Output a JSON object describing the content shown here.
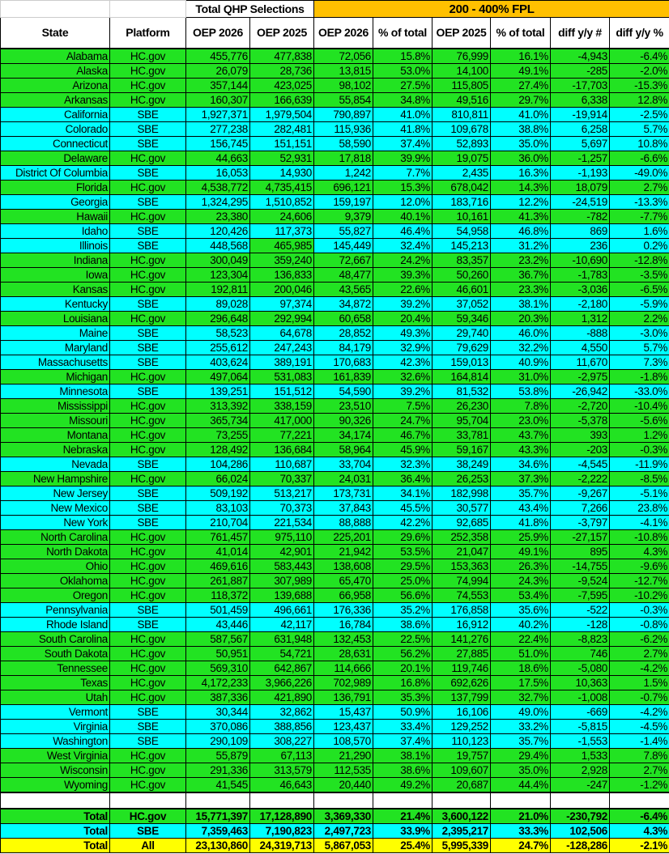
{
  "header": {
    "group_total": "Total QHP Selections",
    "group_fpl": "200 - 400% FPL",
    "columns": [
      "State",
      "Platform",
      "OEP 2026",
      "OEP 2025",
      "OEP 2026",
      "% of total",
      "OEP 2025",
      "% of total",
      "diff y/y #",
      "diff y/y %"
    ]
  },
  "colors": {
    "hc_gov": "#22e322",
    "sbe": "#00ffff",
    "all_total": "#ffff00",
    "fpl_header": "#ffc000"
  },
  "rows": [
    [
      "Alabama",
      "HC.gov",
      "455,776",
      "477,838",
      "72,056",
      "15.8%",
      "76,999",
      "16.1%",
      "-4,943",
      "-6.4%"
    ],
    [
      "Alaska",
      "HC.gov",
      "26,079",
      "28,736",
      "13,815",
      "53.0%",
      "14,100",
      "49.1%",
      "-285",
      "-2.0%"
    ],
    [
      "Arizona",
      "HC.gov",
      "357,144",
      "423,025",
      "98,102",
      "27.5%",
      "115,805",
      "27.4%",
      "-17,703",
      "-15.3%"
    ],
    [
      "Arkansas",
      "HC.gov",
      "160,307",
      "166,639",
      "55,854",
      "34.8%",
      "49,516",
      "29.7%",
      "6,338",
      "12.8%"
    ],
    [
      "California",
      "SBE",
      "1,927,371",
      "1,979,504",
      "790,897",
      "41.0%",
      "810,811",
      "41.0%",
      "-19,914",
      "-2.5%"
    ],
    [
      "Colorado",
      "SBE",
      "277,238",
      "282,481",
      "115,936",
      "41.8%",
      "109,678",
      "38.8%",
      "6,258",
      "5.7%"
    ],
    [
      "Connecticut",
      "SBE",
      "156,745",
      "151,151",
      "58,590",
      "37.4%",
      "52,893",
      "35.0%",
      "5,697",
      "10.8%"
    ],
    [
      "Delaware",
      "HC.gov",
      "44,663",
      "52,931",
      "17,818",
      "39.9%",
      "19,075",
      "36.0%",
      "-1,257",
      "-6.6%"
    ],
    [
      "District Of Columbia",
      "SBE",
      "16,053",
      "14,930",
      "1,242",
      "7.7%",
      "2,435",
      "16.3%",
      "-1,193",
      "-49.0%"
    ],
    [
      "Florida",
      "HC.gov",
      "4,538,772",
      "4,735,415",
      "696,121",
      "15.3%",
      "678,042",
      "14.3%",
      "18,079",
      "2.7%"
    ],
    [
      "Georgia",
      "SBE",
      "1,324,295",
      "1,510,852",
      "159,197",
      "12.0%",
      "183,716",
      "12.2%",
      "-24,519",
      "-13.3%"
    ],
    [
      "Hawaii",
      "HC.gov",
      "23,380",
      "24,606",
      "9,379",
      "40.1%",
      "10,161",
      "41.3%",
      "-782",
      "-7.7%"
    ],
    [
      "Idaho",
      "SBE",
      "120,426",
      "117,373",
      "55,827",
      "46.4%",
      "54,958",
      "46.8%",
      "869",
      "1.6%"
    ],
    [
      "Illinois",
      "SBE",
      "448,568",
      "465,985",
      "145,449",
      "32.4%",
      "145,213",
      "31.2%",
      "236",
      "0.2%"
    ],
    [
      "Indiana",
      "HC.gov",
      "300,049",
      "359,240",
      "72,667",
      "24.2%",
      "83,357",
      "23.2%",
      "-10,690",
      "-12.8%"
    ],
    [
      "Iowa",
      "HC.gov",
      "123,304",
      "136,833",
      "48,477",
      "39.3%",
      "50,260",
      "36.7%",
      "-1,783",
      "-3.5%"
    ],
    [
      "Kansas",
      "HC.gov",
      "192,811",
      "200,046",
      "43,565",
      "22.6%",
      "46,601",
      "23.3%",
      "-3,036",
      "-6.5%"
    ],
    [
      "Kentucky",
      "SBE",
      "89,028",
      "97,374",
      "34,872",
      "39.2%",
      "37,052",
      "38.1%",
      "-2,180",
      "-5.9%"
    ],
    [
      "Louisiana",
      "HC.gov",
      "296,648",
      "292,994",
      "60,658",
      "20.4%",
      "59,346",
      "20.3%",
      "1,312",
      "2.2%"
    ],
    [
      "Maine",
      "SBE",
      "58,523",
      "64,678",
      "28,852",
      "49.3%",
      "29,740",
      "46.0%",
      "-888",
      "-3.0%"
    ],
    [
      "Maryland",
      "SBE",
      "255,612",
      "247,243",
      "84,179",
      "32.9%",
      "79,629",
      "32.2%",
      "4,550",
      "5.7%"
    ],
    [
      "Massachusetts",
      "SBE",
      "403,624",
      "389,191",
      "170,683",
      "42.3%",
      "159,013",
      "40.9%",
      "11,670",
      "7.3%"
    ],
    [
      "Michigan",
      "HC.gov",
      "497,064",
      "531,083",
      "161,839",
      "32.6%",
      "164,814",
      "31.0%",
      "-2,975",
      "-1.8%"
    ],
    [
      "Minnesota",
      "SBE",
      "139,251",
      "151,512",
      "54,590",
      "39.2%",
      "81,532",
      "53.8%",
      "-26,942",
      "-33.0%"
    ],
    [
      "Mississippi",
      "HC.gov",
      "313,392",
      "338,159",
      "23,510",
      "7.5%",
      "26,230",
      "7.8%",
      "-2,720",
      "-10.4%"
    ],
    [
      "Missouri",
      "HC.gov",
      "365,734",
      "417,000",
      "90,326",
      "24.7%",
      "95,704",
      "23.0%",
      "-5,378",
      "-5.6%"
    ],
    [
      "Montana",
      "HC.gov",
      "73,255",
      "77,221",
      "34,174",
      "46.7%",
      "33,781",
      "43.7%",
      "393",
      "1.2%"
    ],
    [
      "Nebraska",
      "HC.gov",
      "128,492",
      "136,684",
      "58,964",
      "45.9%",
      "59,167",
      "43.3%",
      "-203",
      "-0.3%"
    ],
    [
      "Nevada",
      "SBE",
      "104,286",
      "110,687",
      "33,704",
      "32.3%",
      "38,249",
      "34.6%",
      "-4,545",
      "-11.9%"
    ],
    [
      "New Hampshire",
      "HC.gov",
      "66,024",
      "70,337",
      "24,031",
      "36.4%",
      "26,253",
      "37.3%",
      "-2,222",
      "-8.5%"
    ],
    [
      "New Jersey",
      "SBE",
      "509,192",
      "513,217",
      "173,731",
      "34.1%",
      "182,998",
      "35.7%",
      "-9,267",
      "-5.1%"
    ],
    [
      "New Mexico",
      "SBE",
      "83,103",
      "70,373",
      "37,843",
      "45.5%",
      "30,577",
      "43.4%",
      "7,266",
      "23.8%"
    ],
    [
      "New York",
      "SBE",
      "210,704",
      "221,534",
      "88,888",
      "42.2%",
      "92,685",
      "41.8%",
      "-3,797",
      "-4.1%"
    ],
    [
      "North Carolina",
      "HC.gov",
      "761,457",
      "975,110",
      "225,201",
      "29.6%",
      "252,358",
      "25.9%",
      "-27,157",
      "-10.8%"
    ],
    [
      "North Dakota",
      "HC.gov",
      "41,014",
      "42,901",
      "21,942",
      "53.5%",
      "21,047",
      "49.1%",
      "895",
      "4.3%"
    ],
    [
      "Ohio",
      "HC.gov",
      "469,616",
      "583,443",
      "138,608",
      "29.5%",
      "153,363",
      "26.3%",
      "-14,755",
      "-9.6%"
    ],
    [
      "Oklahoma",
      "HC.gov",
      "261,887",
      "307,989",
      "65,470",
      "25.0%",
      "74,994",
      "24.3%",
      "-9,524",
      "-12.7%"
    ],
    [
      "Oregon",
      "HC.gov",
      "118,372",
      "139,688",
      "66,958",
      "56.6%",
      "74,553",
      "53.4%",
      "-7,595",
      "-10.2%"
    ],
    [
      "Pennsylvania",
      "SBE",
      "501,459",
      "496,661",
      "176,336",
      "35.2%",
      "176,858",
      "35.6%",
      "-522",
      "-0.3%"
    ],
    [
      "Rhode Island",
      "SBE",
      "43,446",
      "42,117",
      "16,784",
      "38.6%",
      "16,912",
      "40.2%",
      "-128",
      "-0.8%"
    ],
    [
      "South Carolina",
      "HC.gov",
      "587,567",
      "631,948",
      "132,453",
      "22.5%",
      "141,276",
      "22.4%",
      "-8,823",
      "-6.2%"
    ],
    [
      "South Dakota",
      "HC.gov",
      "50,951",
      "54,721",
      "28,631",
      "56.2%",
      "27,885",
      "51.0%",
      "746",
      "2.7%"
    ],
    [
      "Tennessee",
      "HC.gov",
      "569,310",
      "642,867",
      "114,666",
      "20.1%",
      "119,746",
      "18.6%",
      "-5,080",
      "-4.2%"
    ],
    [
      "Texas",
      "HC.gov",
      "4,172,233",
      "3,966,226",
      "702,989",
      "16.8%",
      "692,626",
      "17.5%",
      "10,363",
      "1.5%"
    ],
    [
      "Utah",
      "HC.gov",
      "387,336",
      "421,890",
      "136,791",
      "35.3%",
      "137,799",
      "32.7%",
      "-1,008",
      "-0.7%"
    ],
    [
      "Vermont",
      "SBE",
      "30,344",
      "32,862",
      "15,437",
      "50.9%",
      "16,106",
      "49.0%",
      "-669",
      "-4.2%"
    ],
    [
      "Virginia",
      "SBE",
      "370,086",
      "388,856",
      "123,437",
      "33.4%",
      "129,252",
      "33.2%",
      "-5,815",
      "-4.5%"
    ],
    [
      "Washington",
      "SBE",
      "290,109",
      "308,227",
      "108,570",
      "37.4%",
      "110,123",
      "35.7%",
      "-1,553",
      "-1.4%"
    ],
    [
      "West Virginia",
      "HC.gov",
      "55,879",
      "67,113",
      "21,290",
      "38.1%",
      "19,757",
      "29.4%",
      "1,533",
      "7.8%"
    ],
    [
      "Wisconsin",
      "HC.gov",
      "291,336",
      "313,579",
      "112,535",
      "38.6%",
      "109,607",
      "35.0%",
      "2,928",
      "2.7%"
    ],
    [
      "Wyoming",
      "HC.gov",
      "41,545",
      "46,643",
      "20,440",
      "49.2%",
      "20,687",
      "44.4%",
      "-247",
      "-1.2%"
    ]
  ],
  "totals": [
    [
      "Total",
      "HC.gov",
      "15,771,397",
      "17,128,890",
      "3,369,330",
      "21.4%",
      "3,600,122",
      "21.0%",
      "-230,792",
      "-6.4%"
    ],
    [
      "Total",
      "SBE",
      "7,359,463",
      "7,190,823",
      "2,497,723",
      "33.9%",
      "2,395,217",
      "33.3%",
      "102,506",
      "4.3%"
    ],
    [
      "Total",
      "All",
      "23,130,860",
      "24,319,713",
      "5,867,053",
      "25.4%",
      "5,995,339",
      "24.7%",
      "-128,286",
      "-2.1%"
    ]
  ]
}
